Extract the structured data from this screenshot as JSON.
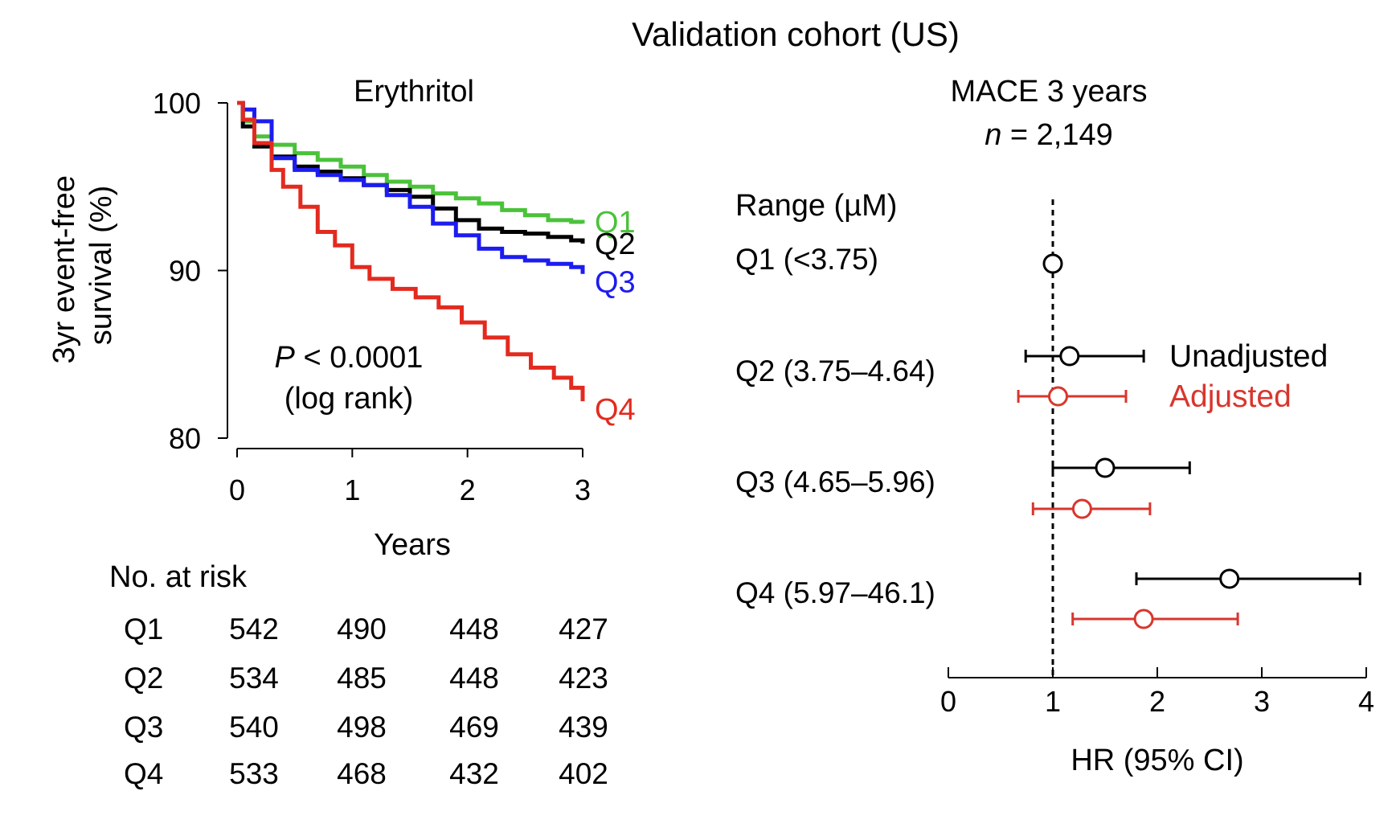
{
  "figure": {
    "title": "Validation cohort (US)"
  },
  "chart_data": [
    {
      "type": "line",
      "subtype": "kaplan-meier",
      "title": "Erythritol",
      "xlabel": "Years",
      "ylabel_line1": "3yr event-free",
      "ylabel_line2": "survival (%)",
      "xlim": [
        0,
        3
      ],
      "ylim": [
        80,
        100
      ],
      "xticks": [
        0,
        1,
        2,
        3
      ],
      "yticks": [
        80,
        90,
        100
      ],
      "grid": false,
      "pvalue_label": "P",
      "pvalue_text": " < 0.0001",
      "pvalue_test": "(log rank)",
      "series": [
        {
          "name": "Q1",
          "color": "#4ac23a",
          "x": [
            0,
            0.05,
            0.15,
            0.3,
            0.5,
            0.7,
            0.9,
            1.1,
            1.3,
            1.5,
            1.7,
            1.9,
            2.1,
            2.3,
            2.5,
            2.7,
            2.9,
            3.0
          ],
          "y": [
            100,
            98.9,
            98.0,
            97.5,
            97.0,
            96.6,
            96.2,
            95.7,
            95.3,
            95.0,
            94.6,
            94.3,
            94.0,
            93.6,
            93.3,
            93.0,
            92.9,
            92.8
          ]
        },
        {
          "name": "Q2",
          "color": "#000000",
          "x": [
            0,
            0.05,
            0.15,
            0.3,
            0.5,
            0.7,
            0.9,
            1.1,
            1.3,
            1.5,
            1.7,
            1.9,
            2.1,
            2.3,
            2.5,
            2.7,
            2.9,
            3.0
          ],
          "y": [
            100,
            98.6,
            97.4,
            96.8,
            96.2,
            95.9,
            95.5,
            95.1,
            94.8,
            94.4,
            93.7,
            93.0,
            92.5,
            92.3,
            92.2,
            92.0,
            91.8,
            91.6
          ]
        },
        {
          "name": "Q3",
          "color": "#1c1cf0",
          "x": [
            0,
            0.05,
            0.15,
            0.3,
            0.5,
            0.7,
            0.9,
            1.1,
            1.3,
            1.5,
            1.7,
            1.9,
            2.1,
            2.3,
            2.5,
            2.7,
            2.9,
            3.0
          ],
          "y": [
            100,
            99.6,
            98.9,
            96.7,
            96.0,
            95.7,
            95.4,
            95.1,
            94.5,
            93.8,
            92.8,
            92.1,
            91.3,
            90.8,
            90.6,
            90.4,
            90.2,
            89.8
          ]
        },
        {
          "name": "Q4",
          "color": "#e32a1f",
          "x": [
            0,
            0.05,
            0.15,
            0.3,
            0.4,
            0.55,
            0.7,
            0.85,
            1.0,
            1.15,
            1.35,
            1.55,
            1.75,
            1.95,
            2.15,
            2.35,
            2.55,
            2.75,
            2.9,
            3.0
          ],
          "y": [
            100,
            99.0,
            97.6,
            96.0,
            95.0,
            93.8,
            92.3,
            91.5,
            90.2,
            89.5,
            88.9,
            88.4,
            87.8,
            86.9,
            86.0,
            85.0,
            84.2,
            83.6,
            83.0,
            82.2
          ]
        }
      ],
      "risk_table": {
        "title": "No. at risk",
        "rows": [
          {
            "label": "Q1",
            "values": [
              "542",
              "490",
              "448",
              "427"
            ]
          },
          {
            "label": "Q2",
            "values": [
              "534",
              "485",
              "448",
              "423"
            ]
          },
          {
            "label": "Q3",
            "values": [
              "540",
              "498",
              "469",
              "439"
            ]
          },
          {
            "label": "Q4",
            "values": [
              "533",
              "468",
              "432",
              "402"
            ]
          }
        ]
      }
    },
    {
      "type": "forest",
      "title": "MACE 3 years",
      "n_label": "n",
      "n_value": " = 2,149",
      "range_header": "Range (µM)",
      "xlabel": "HR (95% CI)",
      "xlim": [
        0,
        4
      ],
      "xticks": [
        0,
        1,
        2,
        3,
        4
      ],
      "reference_line": 1,
      "legend": [
        {
          "name": "Unadjusted",
          "color": "#000000"
        },
        {
          "name": "Adjusted",
          "color": "#d8362e"
        }
      ],
      "rows": [
        {
          "label": "Q1 (<3.75)",
          "unadjusted": {
            "hr": 1.0
          },
          "adjusted": null
        },
        {
          "label": "Q2 (3.75–4.64)",
          "unadjusted": {
            "hr": 1.16,
            "lo": 0.74,
            "hi": 1.87
          },
          "adjusted": {
            "hr": 1.05,
            "lo": 0.67,
            "hi": 1.7
          }
        },
        {
          "label": "Q3 (4.65–5.96)",
          "unadjusted": {
            "hr": 1.5,
            "lo": 1.0,
            "hi": 2.31
          },
          "adjusted": {
            "hr": 1.28,
            "lo": 0.81,
            "hi": 1.93
          }
        },
        {
          "label": "Q4 (5.97–46.1)",
          "unadjusted": {
            "hr": 2.69,
            "lo": 1.8,
            "hi": 3.94
          },
          "adjusted": {
            "hr": 1.87,
            "lo": 1.19,
            "hi": 2.77
          }
        }
      ]
    }
  ]
}
